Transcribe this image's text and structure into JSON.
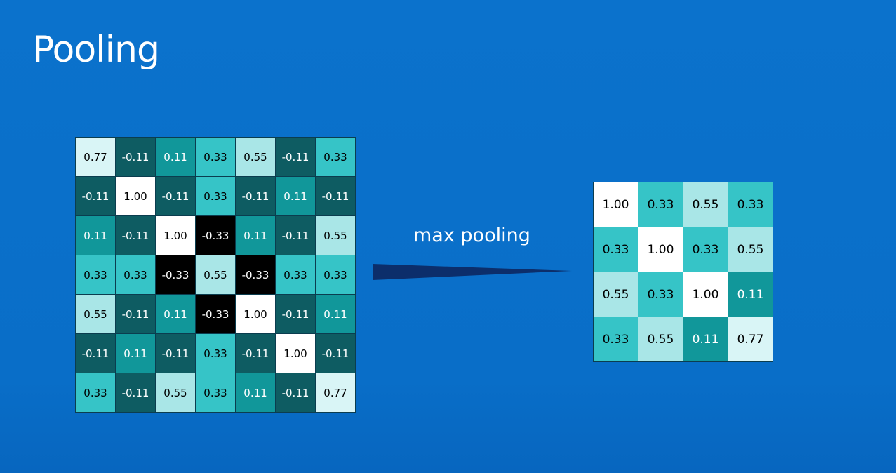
{
  "slide": {
    "title": "Pooling",
    "operation_label": "max pooling"
  },
  "input_matrix": [
    [
      "0.77",
      "-0.11",
      "0.11",
      "0.33",
      "0.55",
      "-0.11",
      "0.33"
    ],
    [
      "-0.11",
      "1.00",
      "-0.11",
      "0.33",
      "-0.11",
      "0.11",
      "-0.11"
    ],
    [
      "0.11",
      "-0.11",
      "1.00",
      "-0.33",
      "0.11",
      "-0.11",
      "0.55"
    ],
    [
      "0.33",
      "0.33",
      "-0.33",
      "0.55",
      "-0.33",
      "0.33",
      "0.33"
    ],
    [
      "0.55",
      "-0.11",
      "0.11",
      "-0.33",
      "1.00",
      "-0.11",
      "0.11"
    ],
    [
      "-0.11",
      "0.11",
      "-0.11",
      "0.33",
      "-0.11",
      "1.00",
      "-0.11"
    ],
    [
      "0.33",
      "-0.11",
      "0.55",
      "0.33",
      "0.11",
      "-0.11",
      "0.77"
    ]
  ],
  "output_matrix": [
    [
      "1.00",
      "0.33",
      "0.55",
      "0.33"
    ],
    [
      "0.33",
      "1.00",
      "0.33",
      "0.55"
    ],
    [
      "0.55",
      "0.33",
      "1.00",
      "0.11"
    ],
    [
      "0.33",
      "0.55",
      "0.11",
      "0.77"
    ]
  ],
  "value_colors": {
    "1.00": {
      "bg": "#ffffff",
      "fg": "#000000"
    },
    "0.77": {
      "bg": "#d9f5f6",
      "fg": "#000000"
    },
    "0.55": {
      "bg": "#a9e6e7",
      "fg": "#000000"
    },
    "0.33": {
      "bg": "#36c4c7",
      "fg": "#000000"
    },
    "0.11": {
      "bg": "#11979a",
      "fg": "#ffffff"
    },
    "-0.11": {
      "bg": "#0e5c62",
      "fg": "#ffffff"
    },
    "-0.33": {
      "bg": "#000000",
      "fg": "#ffffff"
    }
  },
  "colors": {
    "background": "#0a6fca",
    "arrow": "#0c2e6b",
    "text": "#ffffff"
  }
}
